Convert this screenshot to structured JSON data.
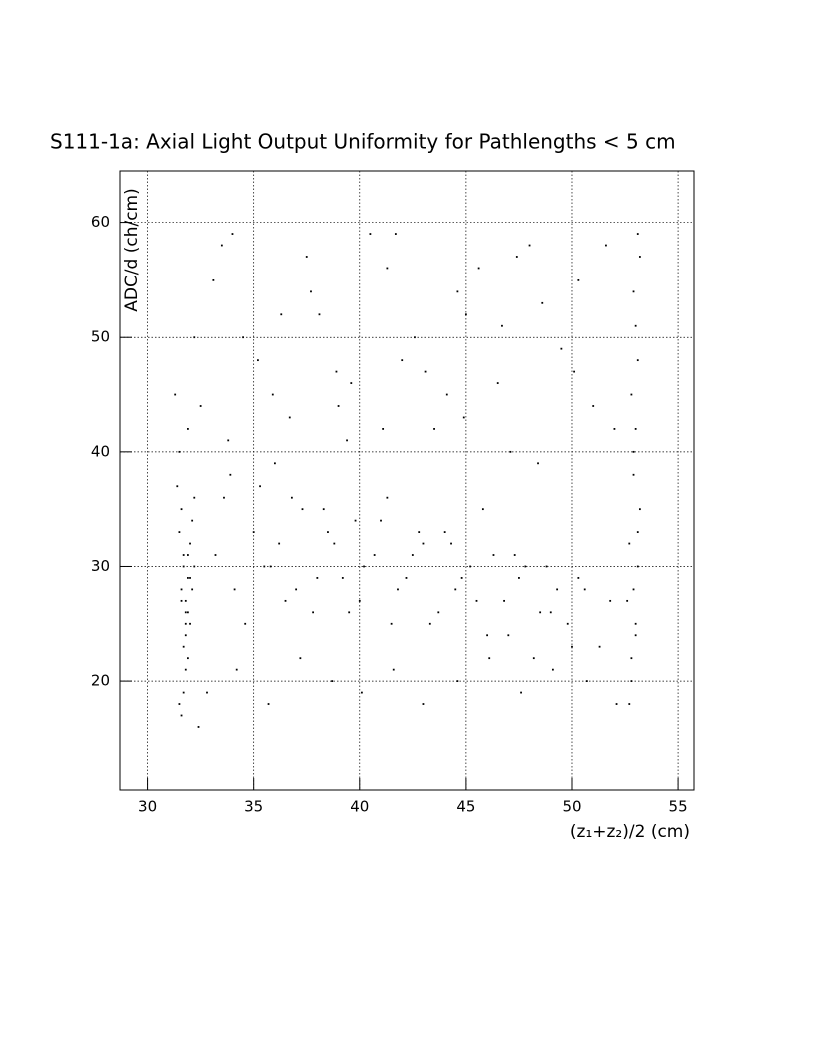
{
  "chart_data": {
    "type": "scatter",
    "title": "S111-1a: Axial Light Output Uniformity for Pathlengths < 5 cm",
    "xlabel": "(z₁+z₂)/2 (cm)",
    "ylabel": "ADC/d (ch/cm)",
    "color": "#000000",
    "grid": true,
    "xlim": [
      28.7,
      55.75
    ],
    "ylim": [
      10.5,
      64.5
    ],
    "xticks": [
      30,
      35,
      40,
      45,
      50,
      55
    ],
    "yticks": [
      20,
      30,
      40,
      50,
      60
    ],
    "x": [
      31.8,
      31.6,
      32.0,
      31.9,
      31.7,
      31.5,
      32.1,
      31.8,
      31.6,
      32.2,
      31.9,
      31.7,
      31.4,
      32.0,
      31.8,
      31.6,
      31.9,
      32.1,
      31.7,
      31.5,
      31.8,
      32.0,
      31.6,
      31.9,
      31.3,
      31.7,
      32.2,
      31.8,
      31.5,
      31.9,
      33.2,
      34.1,
      35.0,
      35.8,
      36.5,
      37.3,
      38.0,
      38.8,
      39.5,
      40.2,
      41.0,
      41.8,
      42.5,
      43.3,
      44.0,
      44.8,
      45.5,
      46.3,
      47.0,
      47.8,
      48.5,
      49.3,
      50.0,
      33.6,
      34.6,
      35.5,
      36.2,
      37.0,
      37.8,
      38.5,
      39.2,
      40.0,
      40.7,
      41.5,
      42.2,
      43.0,
      43.7,
      44.5,
      45.2,
      46.0,
      46.8,
      47.5,
      48.2,
      49.0,
      49.8,
      50.6,
      51.3,
      33.9,
      35.3,
      36.8,
      38.3,
      39.8,
      41.3,
      42.8,
      44.3,
      45.8,
      47.3,
      48.8,
      50.3,
      51.8,
      32.5,
      33.8,
      35.2,
      36.7,
      38.1,
      39.6,
      41.1,
      42.6,
      44.1,
      45.6,
      47.1,
      48.6,
      50.1,
      51.6,
      33.1,
      34.5,
      36.0,
      37.5,
      39.0,
      40.5,
      42.0,
      43.5,
      45.0,
      46.5,
      48.0,
      49.5,
      51.0,
      32.2,
      34.0,
      35.9,
      37.7,
      39.4,
      41.3,
      43.1,
      44.9,
      46.7,
      48.4,
      50.3,
      52.0,
      33.5,
      36.3,
      38.9,
      41.7,
      44.6,
      47.4,
      32.8,
      34.2,
      35.7,
      37.2,
      38.7,
      40.1,
      41.6,
      43.0,
      44.6,
      46.1,
      47.6,
      49.1,
      50.7,
      52.1,
      32.4,
      52.8,
      53.0,
      52.9,
      53.1,
      52.7,
      53.2,
      52.9,
      53.0,
      52.8,
      53.1,
      52.6,
      53.0,
      52.9,
      53.2,
      52.8,
      53.1,
      52.9,
      53.0,
      52.7,
      53.1
    ],
    "y": [
      25,
      27,
      29,
      31,
      23,
      33,
      28,
      21,
      35,
      30,
      26,
      19,
      37,
      32,
      24,
      28,
      22,
      34,
      30,
      40,
      27,
      25,
      17,
      29,
      45,
      31,
      36,
      26,
      18,
      42,
      31,
      28,
      33,
      30,
      27,
      35,
      29,
      32,
      26,
      30,
      34,
      28,
      31,
      25,
      33,
      29,
      27,
      31,
      24,
      30,
      26,
      28,
      23,
      36,
      25,
      30,
      32,
      28,
      26,
      33,
      29,
      27,
      31,
      25,
      29,
      32,
      26,
      28,
      30,
      24,
      27,
      29,
      22,
      26,
      25,
      28,
      23,
      38,
      37,
      36,
      35,
      34,
      36,
      33,
      32,
      35,
      31,
      30,
      29,
      27,
      44,
      41,
      48,
      43,
      52,
      46,
      42,
      50,
      45,
      56,
      40,
      53,
      47,
      58,
      55,
      50,
      39,
      57,
      44,
      59,
      48,
      42,
      52,
      46,
      58,
      49,
      44,
      50,
      59,
      45,
      54,
      41,
      56,
      47,
      43,
      51,
      39,
      55,
      42,
      58,
      52,
      47,
      59,
      54,
      57,
      19,
      21,
      18,
      22,
      20,
      19,
      21,
      18,
      20,
      22,
      19,
      21,
      20,
      18,
      16,
      22,
      25,
      28,
      30,
      32,
      35,
      38,
      42,
      45,
      48,
      27,
      51,
      54,
      57,
      20,
      33,
      40,
      24,
      18,
      59
    ]
  }
}
